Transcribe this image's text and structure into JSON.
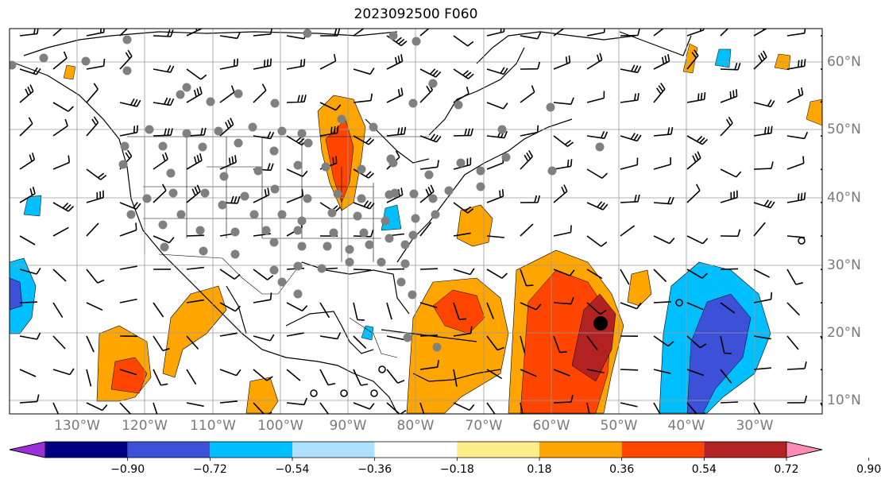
{
  "title": "2023092500 F060",
  "map": {
    "projection": "PlateCarree",
    "lon_range": [
      -140,
      -20
    ],
    "lat_range": [
      8,
      65
    ],
    "gridlines": true,
    "longitude_labels": [
      "130°W",
      "120°W",
      "110°W",
      "100°W",
      "90°W",
      "80°W",
      "70°W",
      "60°W",
      "50°W",
      "40°W",
      "30°W"
    ],
    "latitude_labels": [
      "60°N",
      "50°N",
      "40°N",
      "30°N",
      "20°N",
      "10°N"
    ],
    "features": [
      "coastlines",
      "country borders",
      "state/province borders",
      "wind barbs",
      "station dots",
      "storm center marker"
    ]
  },
  "colorbar": {
    "extend": "both",
    "colors": [
      "#9b30d8",
      "#000080",
      "#3c50d8",
      "#00bfff",
      "#b0e0ff",
      "#ffffff",
      "#ffec8b",
      "#ffa500",
      "#ff4500",
      "#b22222",
      "#ff8cb4"
    ],
    "tick_labels": [
      "−0.90",
      "−0.72",
      "−0.54",
      "−0.36",
      "−0.18",
      "0.18",
      "0.36",
      "0.54",
      "0.72",
      "0.90"
    ]
  }
}
